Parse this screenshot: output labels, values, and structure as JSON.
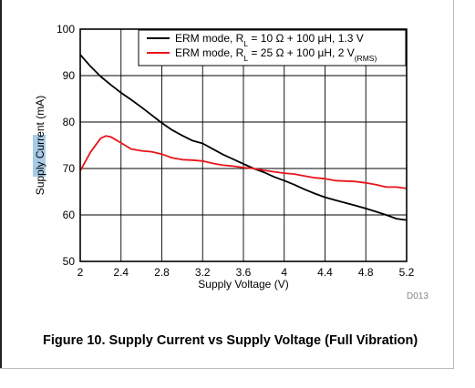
{
  "chart_data": {
    "type": "line",
    "xlabel": "Supply Voltage (V)",
    "ylabel_before": "Supply ",
    "ylabel_highlight": "Current",
    "ylabel_after": " (mA)",
    "xlim": [
      2,
      5.2
    ],
    "ylim": [
      50,
      100
    ],
    "x_ticks": [
      "2",
      "2.4",
      "2.8",
      "3.2",
      "3.6",
      "4",
      "4.4",
      "4.8",
      "5.2"
    ],
    "x_tick_values": [
      2,
      2.4,
      2.8,
      3.2,
      3.6,
      4,
      4.4,
      4.8,
      5.2
    ],
    "y_ticks": [
      "50",
      "60",
      "70",
      "80",
      "90",
      "100"
    ],
    "y_tick_values": [
      50,
      60,
      70,
      80,
      90,
      100
    ],
    "grid": true,
    "legend_position": "top-right",
    "highlight_color": "#a8cce8",
    "series": [
      {
        "name_parts": [
          "ERM mode, R",
          "L",
          " = 10 Ω + 100 µH, 1.3 V"
        ],
        "color": "#000000",
        "x": [
          2.0,
          2.1,
          2.2,
          2.3,
          2.4,
          2.5,
          2.6,
          2.7,
          2.8,
          2.9,
          3.0,
          3.1,
          3.2,
          3.3,
          3.4,
          3.5,
          3.6,
          3.7,
          3.8,
          3.9,
          4.0,
          4.1,
          4.2,
          4.3,
          4.4,
          4.5,
          4.6,
          4.7,
          4.8,
          4.9,
          5.0,
          5.1,
          5.2
        ],
        "y": [
          94.5,
          92.0,
          89.8,
          88.0,
          86.3,
          84.8,
          83.2,
          81.5,
          79.8,
          78.3,
          77.1,
          76.0,
          75.4,
          74.2,
          73.0,
          72.0,
          71.0,
          70.0,
          69.2,
          68.2,
          67.4,
          66.5,
          65.5,
          64.6,
          63.8,
          63.2,
          62.6,
          62.0,
          61.4,
          60.7,
          60.0,
          59.2,
          58.9
        ]
      },
      {
        "name_parts": [
          "ERM mode, R",
          "L",
          " = 25 Ω + 100 µH, 2 V",
          "(RMS)"
        ],
        "color": "#e8141b",
        "x": [
          2.0,
          2.1,
          2.2,
          2.25,
          2.3,
          2.4,
          2.5,
          2.6,
          2.7,
          2.8,
          2.9,
          3.0,
          3.1,
          3.2,
          3.3,
          3.4,
          3.5,
          3.6,
          3.7,
          3.8,
          3.9,
          4.0,
          4.1,
          4.2,
          4.3,
          4.4,
          4.5,
          4.6,
          4.7,
          4.8,
          4.9,
          5.0,
          5.1,
          5.2
        ],
        "y": [
          69.5,
          73.5,
          76.5,
          77.0,
          76.8,
          75.5,
          74.2,
          73.8,
          73.6,
          73.1,
          72.3,
          71.9,
          71.8,
          71.6,
          71.1,
          70.7,
          70.5,
          70.2,
          70.0,
          69.6,
          69.3,
          69.0,
          68.8,
          68.4,
          68.0,
          67.8,
          67.4,
          67.3,
          67.2,
          66.9,
          66.5,
          66.0,
          66.0,
          65.7
        ]
      }
    ]
  },
  "chart_code": "D013",
  "caption": "Figure 10. Supply Current vs Supply Voltage (Full Vibration)"
}
